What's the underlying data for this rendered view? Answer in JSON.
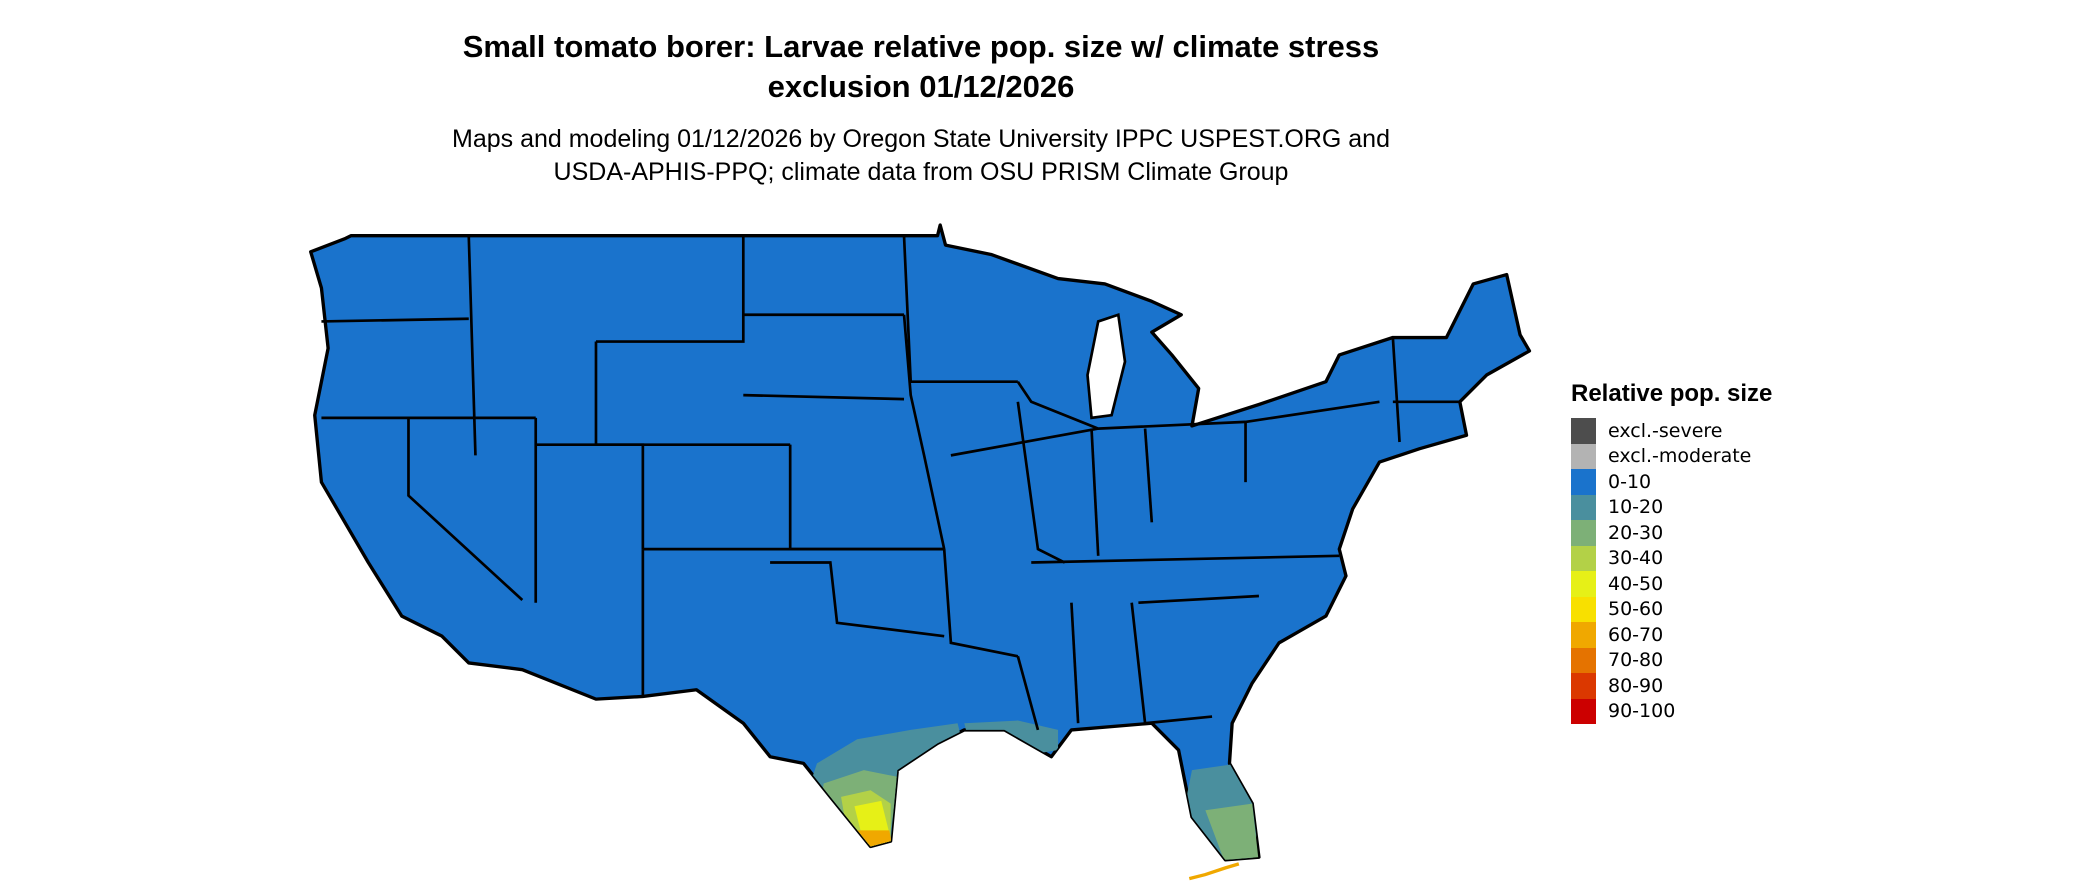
{
  "title": {
    "line1": "Small tomato borer: Larvae relative pop. size w/ climate stress",
    "line2": "exclusion 01/12/2026"
  },
  "subtitle": {
    "line1": "Maps and modeling 01/12/2026 by Oregon State University IPPC USPEST.ORG and",
    "line2": "USDA-APHIS-PPQ; climate data from OSU PRISM Climate Group"
  },
  "chart_data": {
    "type": "heatmap",
    "region": "Contiguous United States",
    "dominant_class": "0-10",
    "elevated_areas": [
      {
        "area": "South Texas coast",
        "classes": [
          "10-20",
          "20-30",
          "30-40",
          "40-50",
          "50-60",
          "60-70"
        ]
      },
      {
        "area": "Gulf coast Louisiana/Mississippi",
        "classes": [
          "10-20",
          "20-30"
        ]
      },
      {
        "area": "South Florida",
        "classes": [
          "10-20",
          "20-30",
          "60-70"
        ]
      }
    ],
    "legend": {
      "title": "Relative pop. size",
      "placement": "right",
      "items": [
        {
          "label": "excl.-severe",
          "color": "#4d4d4d"
        },
        {
          "label": "excl.-moderate",
          "color": "#b3b3b3"
        },
        {
          "label": "0-10",
          "color": "#1a73cc"
        },
        {
          "label": "10-20",
          "color": "#4a8f9e"
        },
        {
          "label": "20-30",
          "color": "#7db077"
        },
        {
          "label": "30-40",
          "color": "#b3d147"
        },
        {
          "label": "40-50",
          "color": "#e6f017"
        },
        {
          "label": "50-60",
          "color": "#f8e000"
        },
        {
          "label": "60-70",
          "color": "#f0a800"
        },
        {
          "label": "70-80",
          "color": "#e57300"
        },
        {
          "label": "80-90",
          "color": "#db3800"
        },
        {
          "label": "90-100",
          "color": "#cc0000"
        }
      ]
    }
  }
}
